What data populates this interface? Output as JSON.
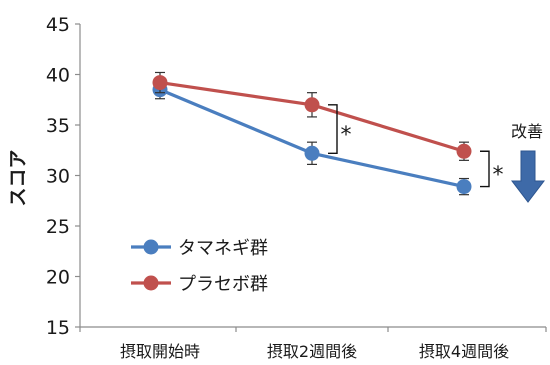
{
  "chart_data": {
    "type": "line",
    "categories": [
      "摂取開始時",
      "摂取2週間後",
      "摂取4週間後"
    ],
    "ylabel": "スコア",
    "xlabel": "",
    "ylim": [
      15,
      45
    ],
    "yticks": [
      15,
      20,
      25,
      30,
      35,
      40,
      45
    ],
    "grid": false,
    "legend_position": "bottom-left",
    "series": [
      {
        "name": "タマネギ群",
        "color": "#4a7ebf",
        "values": [
          38.5,
          32.2,
          28.9
        ],
        "errors": [
          0.9,
          1.1,
          0.8
        ]
      },
      {
        "name": "プラセボ群",
        "color": "#c0504d",
        "values": [
          39.2,
          37.0,
          32.4
        ],
        "errors": [
          1.0,
          1.2,
          0.9
        ]
      }
    ],
    "annotations": {
      "significance": [
        {
          "category_index": 1,
          "label": "*"
        },
        {
          "category_index": 2,
          "label": "*"
        }
      ],
      "improvement_label": "改善",
      "improvement_arrow_color": "#3e6aa8"
    }
  }
}
